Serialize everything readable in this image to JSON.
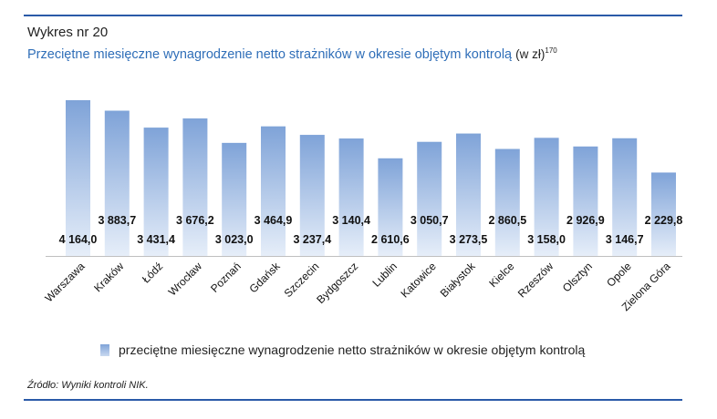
{
  "header": {
    "label": "Wykres nr 20",
    "subtitle": "Przeciętne miesięczne wynagrodzenie netto strażników w okresie objętym kontrolą",
    "unit": "(w zł)",
    "footnote": "170"
  },
  "legend": {
    "label": "przeciętne miesięczne wynagrodzenie netto strażników w okresie objętym kontrolą"
  },
  "source": "Źródło: Wyniki kontroli NIK.",
  "colors": {
    "bar_top": "#7fa3d8",
    "bar_bottom": "#e6eef9",
    "title": "#2f6eb8",
    "rule": "#2a5aa8"
  },
  "chart_data": {
    "type": "bar",
    "categories": [
      "Warszawa",
      "Kraków",
      "Łódź",
      "Wrocław",
      "Poznań",
      "Gdańsk",
      "Szczecin",
      "Bydgoszcz",
      "Lublin",
      "Katowice",
      "Białystok",
      "Kielce",
      "Rzeszów",
      "Olsztyn",
      "Opole",
      "Zielona Góra"
    ],
    "values": [
      4164.0,
      3883.7,
      3431.4,
      3676.2,
      3023.0,
      3464.9,
      3237.4,
      3140.4,
      2610.6,
      3050.7,
      3273.5,
      2860.5,
      3158.0,
      2926.9,
      3146.7,
      2229.8
    ],
    "value_labels": [
      "4 164,0",
      "3 883,7",
      "3 431,4",
      "3 676,2",
      "3 023,0",
      "3 464,9",
      "3 237,4",
      "3 140,4",
      "2 610,6",
      "3 050,7",
      "3 273,5",
      "2 860,5",
      "3 158,0",
      "2 926,9",
      "3 146,7",
      "2 229,8"
    ],
    "series": [
      {
        "name": "przeciętne miesięczne wynagrodzenie netto strażników w okresie objętym kontrolą"
      }
    ],
    "grid": false,
    "legend_position": "bottom"
  }
}
